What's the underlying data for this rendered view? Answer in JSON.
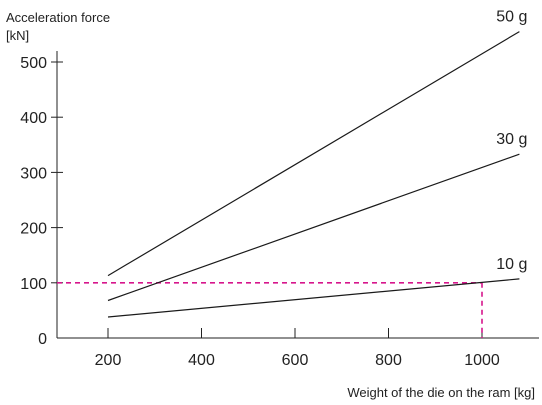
{
  "chart_data": {
    "type": "line",
    "title": "",
    "ylabel_lines": [
      "Acceleration force",
      "[kN]"
    ],
    "xlabel": "Weight of the die on the ram [kg]",
    "xlim": [
      90,
      1100
    ],
    "ylim": [
      0,
      540
    ],
    "x_ticks": [
      200,
      400,
      600,
      800,
      1000
    ],
    "y_ticks": [
      0,
      100,
      200,
      300,
      400,
      500
    ],
    "grid": false,
    "legend": "none",
    "series": [
      {
        "name": "50 g",
        "x": [
          200,
          1080
        ],
        "y": [
          113,
          555
        ],
        "color": "#1a1a1a"
      },
      {
        "name": "30 g",
        "x": [
          200,
          1080
        ],
        "y": [
          68,
          333
        ],
        "color": "#1a1a1a"
      },
      {
        "name": "10 g",
        "x": [
          200,
          1080
        ],
        "y": [
          38,
          107
        ],
        "color": "#1a1a1a"
      }
    ],
    "reference": {
      "x": 1000,
      "y": 100,
      "color": "#d6168c",
      "style": "dashed"
    }
  }
}
